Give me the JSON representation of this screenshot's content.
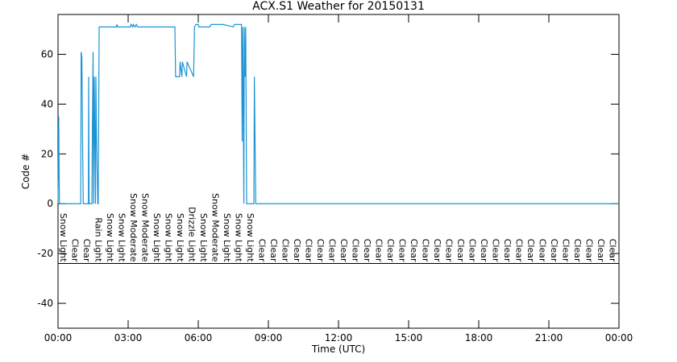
{
  "chart_data": {
    "type": "line",
    "title": "ACX.S1 Weather for 20150131",
    "xlabel": "Time (UTC)",
    "ylabel": "Code #",
    "xlim": [
      0,
      24
    ],
    "ylim": [
      -50,
      76
    ],
    "xticks": [
      {
        "value": 0,
        "label": "00:00"
      },
      {
        "value": 3,
        "label": "03:00"
      },
      {
        "value": 6,
        "label": "06:00"
      },
      {
        "value": 9,
        "label": "09:00"
      },
      {
        "value": 12,
        "label": "12:00"
      },
      {
        "value": 15,
        "label": "15:00"
      },
      {
        "value": 18,
        "label": "18:00"
      },
      {
        "value": 21,
        "label": "21:00"
      },
      {
        "value": 24,
        "label": "00:00"
      }
    ],
    "yticks": [
      -40,
      -20,
      0,
      20,
      40,
      60
    ],
    "hlines": [
      -24
    ],
    "series": [
      {
        "color": "#1c93d4",
        "x": [
          0,
          0.03,
          0.06,
          0.1,
          0.97,
          0.99,
          1.02,
          1.05,
          1.08,
          1.3,
          1.31,
          1.33,
          1.45,
          1.47,
          1.5,
          1.52,
          1.55,
          1.6,
          1.62,
          1.65,
          1.7,
          1.72,
          1.76,
          2.5,
          2.52,
          2.55,
          3.1,
          3.12,
          3.2,
          3.22,
          3.3,
          3.35,
          3.4,
          5.0,
          5.03,
          5.2,
          5.22,
          5.3,
          5.32,
          5.5,
          5.52,
          5.8,
          5.84,
          5.9,
          6.0,
          6.02,
          6.5,
          6.55,
          7.0,
          7.05,
          7.5,
          7.55,
          7.85,
          7.88,
          7.9,
          7.92,
          7.95,
          7.97,
          8.0,
          8.03,
          8.07,
          8.38,
          8.4,
          8.43,
          8.46,
          24
        ],
        "values": [
          0,
          35,
          0,
          0,
          0,
          61,
          59,
          25,
          0,
          0,
          51,
          0,
          0,
          30,
          61,
          0,
          51,
          0,
          51,
          25,
          0,
          0,
          71,
          71,
          72,
          71,
          71,
          72,
          71,
          72,
          71,
          72,
          71,
          71,
          51,
          51,
          57,
          51,
          57,
          51,
          57,
          51,
          71,
          72,
          72,
          71,
          71,
          72,
          72,
          72,
          71,
          72,
          72,
          25,
          71,
          51,
          0,
          71,
          51,
          71,
          0,
          0,
          51,
          25,
          0,
          0
        ]
      }
    ],
    "annotations": [
      {
        "x": 0,
        "text": "Snow Light"
      },
      {
        "x": 0.5,
        "text": "Clear"
      },
      {
        "x": 1,
        "text": "Clear"
      },
      {
        "x": 1.5,
        "text": "Rain Light"
      },
      {
        "x": 2,
        "text": "Snow Light"
      },
      {
        "x": 2.5,
        "text": "Snow Light"
      },
      {
        "x": 3,
        "text": "Snow Moderate"
      },
      {
        "x": 3.5,
        "text": "Snow Moderate"
      },
      {
        "x": 4,
        "text": "Snow Light"
      },
      {
        "x": 4.5,
        "text": "Snow Light"
      },
      {
        "x": 5,
        "text": "Snow Light"
      },
      {
        "x": 5.5,
        "text": "Drizzle Light"
      },
      {
        "x": 6,
        "text": "Snow Light"
      },
      {
        "x": 6.5,
        "text": "Snow Moderate"
      },
      {
        "x": 7,
        "text": "Snow Light"
      },
      {
        "x": 7.5,
        "text": "Snow Light"
      },
      {
        "x": 8,
        "text": "Snow Light"
      },
      {
        "x": 8.5,
        "text": "Clear"
      },
      {
        "x": 9,
        "text": "Clear"
      },
      {
        "x": 9.5,
        "text": "Clear"
      },
      {
        "x": 10,
        "text": "Clear"
      },
      {
        "x": 10.5,
        "text": "Clear"
      },
      {
        "x": 11,
        "text": "Clear"
      },
      {
        "x": 11.5,
        "text": "Clear"
      },
      {
        "x": 12,
        "text": "Clear"
      },
      {
        "x": 12.5,
        "text": "Clear"
      },
      {
        "x": 13,
        "text": "Clear"
      },
      {
        "x": 13.5,
        "text": "Clear"
      },
      {
        "x": 14,
        "text": "Clear"
      },
      {
        "x": 14.5,
        "text": "Clear"
      },
      {
        "x": 15,
        "text": "Clear"
      },
      {
        "x": 15.5,
        "text": "Clear"
      },
      {
        "x": 16,
        "text": "Clear"
      },
      {
        "x": 16.5,
        "text": "Clear"
      },
      {
        "x": 17,
        "text": "Clear"
      },
      {
        "x": 17.5,
        "text": "Clear"
      },
      {
        "x": 18,
        "text": "Clear"
      },
      {
        "x": 18.5,
        "text": "Clear"
      },
      {
        "x": 19,
        "text": "Clear"
      },
      {
        "x": 19.5,
        "text": "Clear"
      },
      {
        "x": 20,
        "text": "Clear"
      },
      {
        "x": 20.5,
        "text": "Clear"
      },
      {
        "x": 21,
        "text": "Clear"
      },
      {
        "x": 21.5,
        "text": "Clear"
      },
      {
        "x": 22,
        "text": "Clear"
      },
      {
        "x": 22.5,
        "text": "Clear"
      },
      {
        "x": 23,
        "text": "Clear"
      },
      {
        "x": 23.5,
        "text": "Clear"
      }
    ]
  }
}
